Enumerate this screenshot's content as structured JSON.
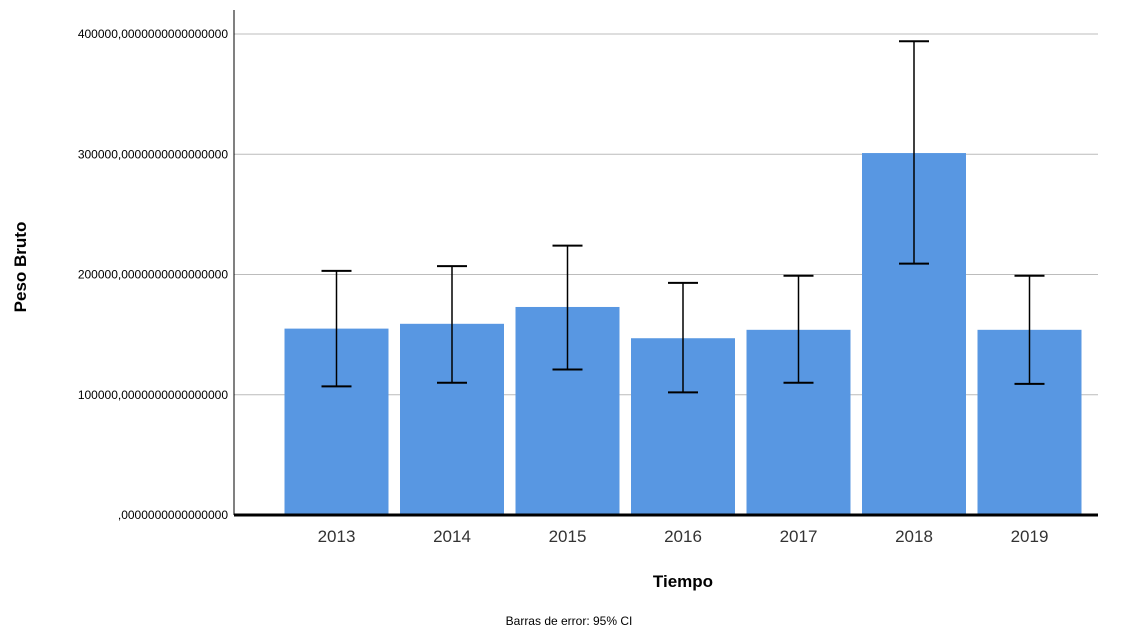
{
  "chart_data": {
    "type": "bar",
    "categories": [
      "2013",
      "2014",
      "2015",
      "2016",
      "2017",
      "2018",
      "2019"
    ],
    "values": [
      155000,
      159000,
      173000,
      147000,
      154000,
      301000,
      154000
    ],
    "error_bars": {
      "lower": [
        107000,
        110000,
        121000,
        102000,
        110000,
        209000,
        109000
      ],
      "upper": [
        203000,
        207000,
        224000,
        193000,
        199000,
        394000,
        199000
      ]
    },
    "xlabel": "Tiempo",
    "ylabel": "Peso Bruto",
    "ylim": [
      0,
      400000
    ],
    "yticks": [
      0,
      100000,
      200000,
      300000,
      400000
    ],
    "ytick_labels": [
      ",0000000000000000",
      "100000,0000000000000000",
      "200000,0000000000000000",
      "300000,0000000000000000",
      "400000,0000000000000000"
    ],
    "grid": "horizontal",
    "footnote": "Barras de error: 95% CI",
    "colors": {
      "bar": "#5897e2",
      "grid": "#bcbcbc",
      "axis": "#000000",
      "error": "#000000"
    }
  }
}
